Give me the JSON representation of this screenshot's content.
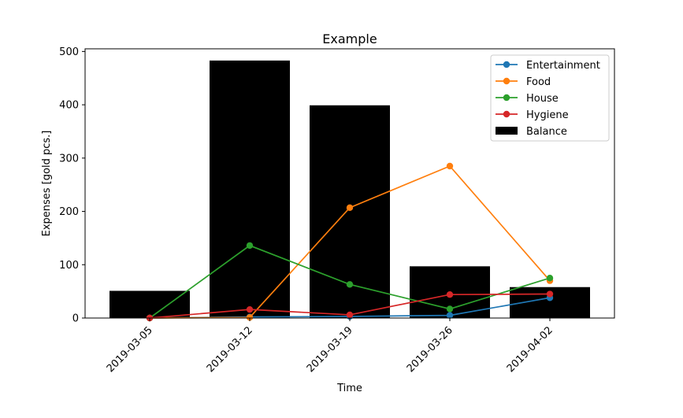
{
  "chart_data": {
    "type": "bar+line",
    "title": "Example",
    "xlabel": "Time",
    "ylabel": "Expenses [gold pcs.]",
    "categories": [
      "2019-03-05",
      "2019-03-12",
      "2019-03-19",
      "2019-03-26",
      "2019-04-02"
    ],
    "ylim": [
      0,
      505
    ],
    "yticks": [
      0,
      100,
      200,
      300,
      400,
      500
    ],
    "grid": false,
    "legend_position": "top-right",
    "bars": {
      "name": "Balance",
      "color": "#000000",
      "values": [
        51,
        483,
        399,
        97,
        58
      ]
    },
    "series": [
      {
        "name": "Entertainment",
        "color": "#1f77b4",
        "values": [
          0,
          2,
          3,
          5,
          38
        ]
      },
      {
        "name": "Food",
        "color": "#ff7f0e",
        "values": [
          0,
          1,
          207,
          285,
          70
        ]
      },
      {
        "name": "House",
        "color": "#2ca02c",
        "values": [
          0,
          136,
          63,
          17,
          75
        ]
      },
      {
        "name": "Hygiene",
        "color": "#d62728",
        "values": [
          0,
          16,
          6,
          44,
          45
        ]
      }
    ]
  }
}
